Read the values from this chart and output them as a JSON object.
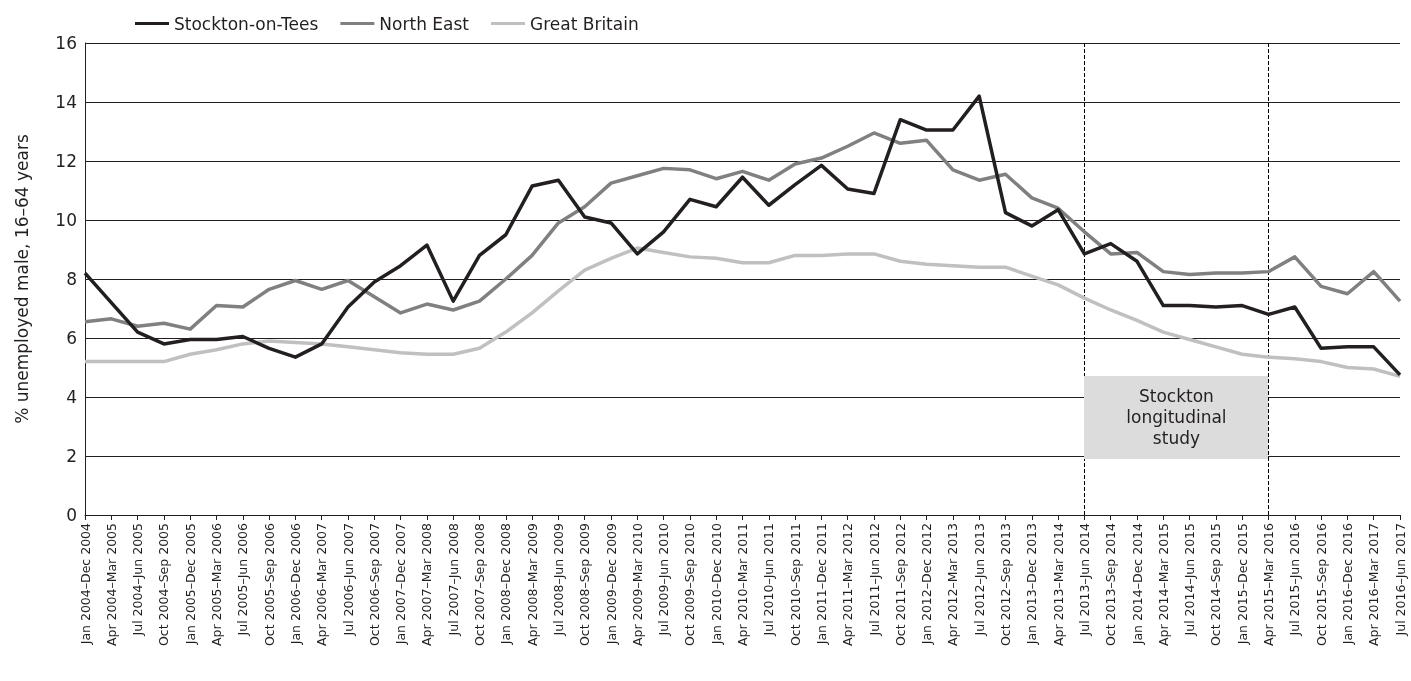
{
  "chart_data": {
    "type": "line",
    "ylabel": "% unemployed male, 16–64 years",
    "categories": [
      "Jan 2004–Dec 2004",
      "Apr 2004–Mar 2005",
      "Jul 2004–Jun 2005",
      "Oct 2004–Sep 2005",
      "Jan 2005–Dec 2005",
      "Apr 2005–Mar 2006",
      "Jul 2005–Jun 2006",
      "Oct 2005–Sep 2006",
      "Jan 2006–Dec 2006",
      "Apr 2006–Mar 2007",
      "Jul 2006–Jun 2007",
      "Oct 2006–Sep 2007",
      "Jan 2007–Dec 2007",
      "Apr 2007–Mar 2008",
      "Jul 2007–Jun 2008",
      "Oct 2007–Sep 2008",
      "Jan 2008–Dec 2008",
      "Apr 2008–Mar 2009",
      "Jul 2008–Jun 2009",
      "Oct 2008–Sep 2009",
      "Jan 2009–Dec 2009",
      "Apr 2009–Mar 2010",
      "Jul 2009–Jun 2010",
      "Oct 2009–Sep 2010",
      "Jan 2010–Dec 2010",
      "Apr 2010–Mar 2011",
      "Jul 2010–Jun 2011",
      "Oct 2010–Sep 2011",
      "Jan 2011–Dec 2011",
      "Apr 2011–Mar 2012",
      "Jul 2011–Jun 2012",
      "Oct 2011–Sep 2012",
      "Jan 2012–Dec 2012",
      "Apr 2012–Mar 2013",
      "Jul 2012–Jun 2013",
      "Oct 2012–Sep 2013",
      "Jan 2013–Dec 2013",
      "Apr 2013–Mar 2014",
      "Jul 2013–Jun 2014",
      "Oct 2013–Sep 2014",
      "Jan 2014–Dec 2014",
      "Apr 2014–Mar 2015",
      "Jul 2014–Jun 2015",
      "Oct 2014–Sep 2015",
      "Jan 2015–Dec 2015",
      "Apr 2015–Mar 2016",
      "Jul 2015–Jun 2016",
      "Oct 2015–Sep 2016",
      "Jan 2016–Dec 2016",
      "Apr 2016–Mar 2017",
      "Jul 2016–Jun 2017"
    ],
    "series": [
      {
        "name": "Stockton-on-Tees",
        "color": "#231f20",
        "values": [
          8.2,
          7.2,
          6.2,
          5.8,
          5.95,
          5.95,
          6.05,
          5.65,
          5.35,
          5.8,
          7.05,
          7.9,
          8.45,
          9.15,
          7.25,
          8.8,
          9.5,
          11.15,
          11.35,
          10.1,
          9.9,
          8.85,
          9.6,
          10.7,
          10.45,
          11.45,
          10.5,
          11.2,
          11.85,
          11.05,
          10.9,
          13.4,
          13.05,
          13.05,
          14.2,
          10.25,
          9.8,
          10.35,
          8.85,
          9.2,
          8.6,
          7.1,
          7.1,
          7.05,
          7.1,
          6.8,
          7.05,
          5.65,
          5.7,
          5.7,
          4.75
        ]
      },
      {
        "name": "North East",
        "color": "#808080",
        "values": [
          6.55,
          6.65,
          6.4,
          6.5,
          6.3,
          7.1,
          7.05,
          7.65,
          7.95,
          7.65,
          7.95,
          7.4,
          6.85,
          7.15,
          6.95,
          7.25,
          8.0,
          8.8,
          9.9,
          10.45,
          11.25,
          11.5,
          11.75,
          11.7,
          11.4,
          11.65,
          11.35,
          11.9,
          12.1,
          12.5,
          12.95,
          12.6,
          12.7,
          11.7,
          11.35,
          11.55,
          10.75,
          10.4,
          9.6,
          8.85,
          8.9,
          8.25,
          8.15,
          8.2,
          8.2,
          8.25,
          8.75,
          7.75,
          7.5,
          8.25,
          7.25
        ]
      },
      {
        "name": "Great Britain",
        "color": "#c0c0c2",
        "values": [
          5.2,
          5.2,
          5.2,
          5.2,
          5.45,
          5.6,
          5.8,
          5.9,
          5.85,
          5.8,
          5.7,
          5.6,
          5.5,
          5.45,
          5.45,
          5.65,
          6.2,
          6.85,
          7.6,
          8.3,
          8.7,
          9.05,
          8.9,
          8.75,
          8.7,
          8.55,
          8.55,
          8.8,
          8.8,
          8.85,
          8.85,
          8.6,
          8.5,
          8.45,
          8.4,
          8.4,
          8.1,
          7.8,
          7.35,
          6.95,
          6.6,
          6.2,
          5.95,
          5.7,
          5.45,
          5.35,
          5.3,
          5.2,
          5.0,
          4.95,
          4.7
        ]
      }
    ],
    "ylim": [
      0,
      16
    ],
    "yticks": [
      0,
      2,
      4,
      6,
      8,
      10,
      12,
      14,
      16
    ],
    "grid": "y",
    "legend": "top left",
    "ref_lines": [
      {
        "axis": "x",
        "value": "Jul 2013–Jun 2014",
        "color": "#000000",
        "line_style": "dashed"
      },
      {
        "axis": "x",
        "value": "Apr 2015–Mar 2016",
        "color": "#000000",
        "line_style": "dashed"
      }
    ],
    "annotations": [
      "Stockton longitudinal study"
    ]
  }
}
